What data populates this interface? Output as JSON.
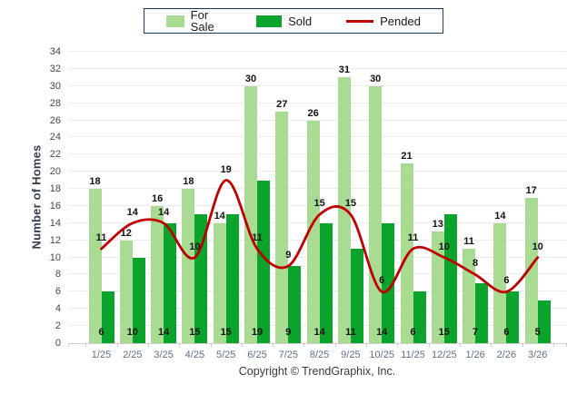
{
  "page": {
    "copyright": "Copyright © TrendGraphix, Inc."
  },
  "colors": {
    "for_sale": "#a9dc92",
    "sold": "#0aa32b",
    "pended": "#c00000",
    "legend_border": "#17375e",
    "gridline": "#ececec"
  },
  "chart_data": {
    "type": "bar+line",
    "title": "",
    "ylabel": "Number of Homes",
    "xlabel": "",
    "ylim": [
      0,
      34
    ],
    "ytick_step": 2,
    "grid": true,
    "legend_position": "top-center",
    "categories": [
      "1/25",
      "2/25",
      "3/25",
      "4/25",
      "5/25",
      "6/25",
      "7/25",
      "8/25",
      "9/25",
      "10/25",
      "11/25",
      "12/25",
      "1/26",
      "2/26",
      "3/26"
    ],
    "series": [
      {
        "name": "For Sale",
        "type": "bar",
        "color": "#a9dc92",
        "values": [
          18,
          12,
          16,
          18,
          14,
          30,
          27,
          26,
          31,
          30,
          21,
          13,
          11,
          14,
          17
        ]
      },
      {
        "name": "Sold",
        "type": "bar",
        "color": "#0aa32b",
        "values": [
          6,
          10,
          14,
          15,
          15,
          19,
          9,
          14,
          11,
          14,
          6,
          15,
          7,
          6,
          5
        ]
      },
      {
        "name": "Pended",
        "type": "line",
        "color": "#c00000",
        "values": [
          11,
          14,
          14,
          10,
          19,
          11,
          9,
          15,
          15,
          6,
          11,
          10,
          8,
          6,
          10
        ]
      }
    ]
  }
}
